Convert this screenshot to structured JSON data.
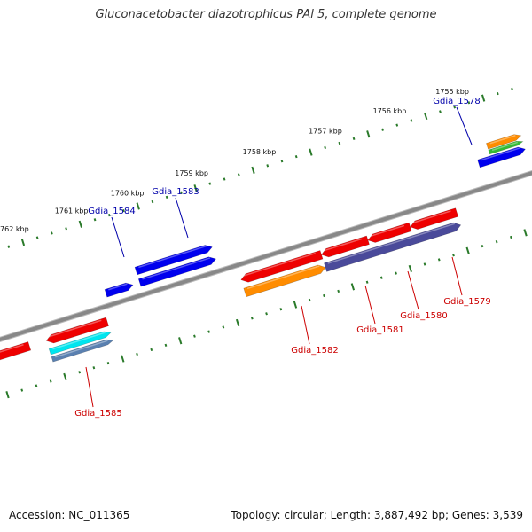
{
  "title": "Gluconacetobacter diazotrophicus PAl 5, complete genome",
  "footer": {
    "accession": "Accession: NC_011365",
    "topology": "Topology: circular; Length: 3,887,492 bp; Genes: 3,539"
  },
  "colors": {
    "backbone": "#888888",
    "tick": "#2a7a2a",
    "forward_label": "#0000aa",
    "reverse_label": "#cc0000",
    "blue": "#0000ee",
    "red": "#ee0000",
    "orange": "#ff8c00",
    "cyan": "#00e5ee",
    "slate": "#4a4a9a",
    "steel": "#5a80b0",
    "green": "#33bb33"
  },
  "ticks": [
    {
      "label": "1755 kbp"
    },
    {
      "label": "1756 kbp"
    },
    {
      "label": "1757 kbp"
    },
    {
      "label": "1758 kbp"
    },
    {
      "label": "1759 kbp"
    },
    {
      "label": "1760 kbp"
    },
    {
      "label": "1761 kbp"
    },
    {
      "label": "1762 kbp"
    }
  ],
  "genes_forward": [
    {
      "label": "Gdia_1578",
      "color": "blue"
    },
    {
      "label": "Gdia_1583",
      "color": "blue"
    },
    {
      "label": "Gdia_1584",
      "color": "blue"
    }
  ],
  "genes_reverse": [
    {
      "label": "Gdia_1579",
      "color": "red"
    },
    {
      "label": "Gdia_1580",
      "color": "red"
    },
    {
      "label": "Gdia_1581",
      "color": "red"
    },
    {
      "label": "Gdia_1582",
      "color": "red"
    },
    {
      "label": "Gdia_1585",
      "color": "red"
    }
  ]
}
